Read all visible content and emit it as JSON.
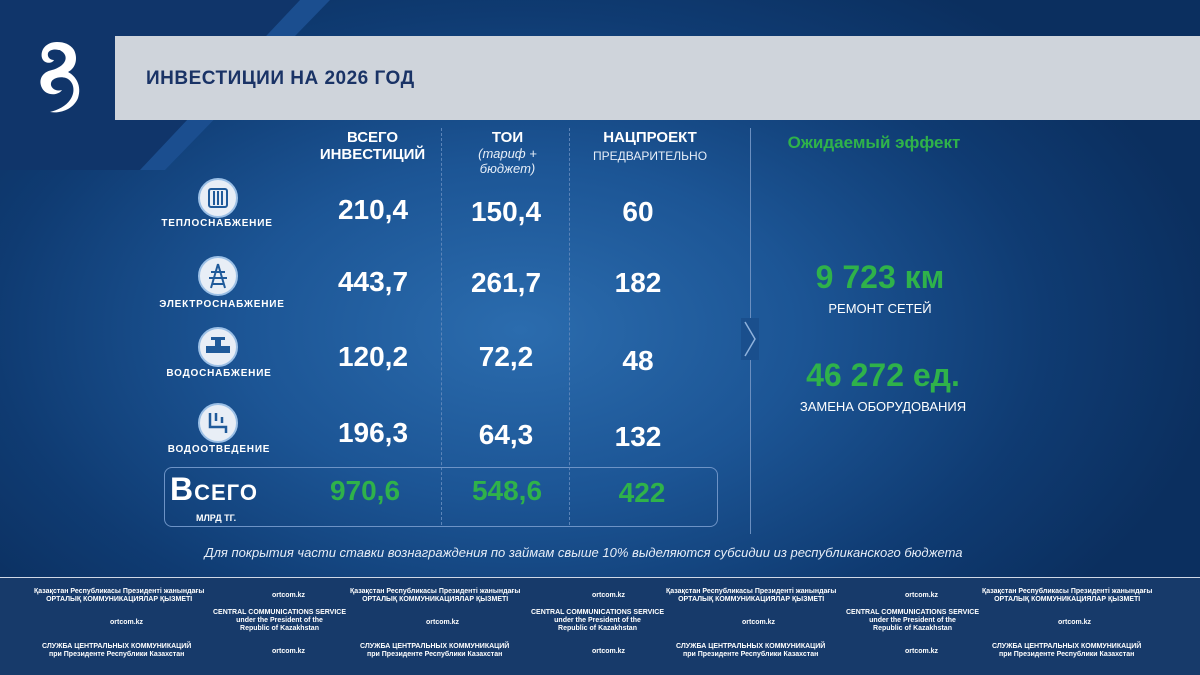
{
  "title": "ИНВЕСТИЦИИ НА 2026 ГОД",
  "columns": {
    "total_line1": "ВСЕГО",
    "total_line2": "ИНВЕСТИЦИЙ",
    "toi_title": "ТОИ",
    "toi_sub1": "(тариф +",
    "toi_sub2": "бюджет)",
    "nat_title": "НАЦПРОЕКТ",
    "nat_sub": "ПРЕДВАРИТЕЛЬНО"
  },
  "rows": [
    {
      "label": "ТЕПЛОСНАБЖЕНИЕ",
      "icon": "heating-icon",
      "total": "210,4",
      "toi": "150,4",
      "nat": "60"
    },
    {
      "label": "ЭЛЕКТРОСНАБЖЕНИЕ",
      "icon": "power-line-icon",
      "total": "443,7",
      "toi": "261,7",
      "nat": "182"
    },
    {
      "label": "ВОДОСНАБЖЕНИЕ",
      "icon": "water-valve-icon",
      "total": "120,2",
      "toi": "72,2",
      "nat": "48"
    },
    {
      "label": "ВОДООТВЕДЕНИЕ",
      "icon": "drainage-icon",
      "total": "196,3",
      "toi": "64,3",
      "nat": "132"
    }
  ],
  "totals": {
    "label": "Всего",
    "unit": "МЛРД ТГ.",
    "total": "970,6",
    "toi": "548,6",
    "nat": "422"
  },
  "effect": {
    "heading": "Ожидаемый эффект",
    "value1": "9 723 км",
    "label1": "РЕМОНТ СЕТЕЙ",
    "value2": "46 272 ед.",
    "label2": "ЗАМЕНА ОБОРУДОВАНИЯ"
  },
  "note": "Для покрытия части ставки вознаграждения по займам свыше 10% выделяются субсидии из республиканского бюджета",
  "footer": {
    "kz_line1": "Қазақстан Республикасы Президенті жанындағы",
    "kz_line2": "ОРТАЛЫҚ КОММУНИКАЦИЯЛАР ҚЫЗМЕТІ",
    "en_line1": "CENTRAL COMMUNICATIONS SERVICE",
    "en_line2": "under the President of the",
    "en_line3": "Republic of Kazakhstan",
    "ru_line1": "СЛУЖБА ЦЕНТРАЛЬНЫХ КОММУНИКАЦИЙ",
    "ru_line2": "при Президенте Республики Казахстан",
    "site": "ortcom.kz"
  },
  "colors": {
    "accent_green": "#2fb24a",
    "title_navy": "#1a3366",
    "background": "#1c5595"
  }
}
